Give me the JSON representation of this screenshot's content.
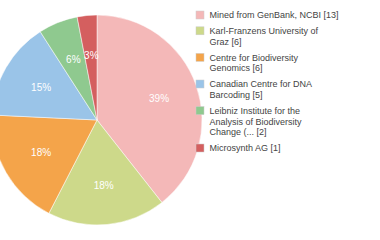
{
  "chart_data": {
    "type": "pie",
    "categories": [
      "Mined from GenBank, NCBI [13]",
      "Karl-Franzens University of\nGraz [6]",
      "Centre for Biodiversity\nGenomics [6]",
      "Canadian Centre for DNA\nBarcoding [5]",
      "Leibniz Institute for the\nAnalysis of Biodiversity\nChange (... [2]",
      "Microsynth AG [1]"
    ],
    "values": [
      39,
      18,
      18,
      15,
      6,
      3
    ],
    "value_labels": [
      "39%",
      "18%",
      "18%",
      "15%",
      "6%",
      "3%"
    ],
    "colors": [
      "#f4b8b8",
      "#cdd98a",
      "#f4a44a",
      "#9ac4e8",
      "#8fc98f",
      "#d45f5f"
    ],
    "data_labels": true,
    "legend": "right"
  }
}
